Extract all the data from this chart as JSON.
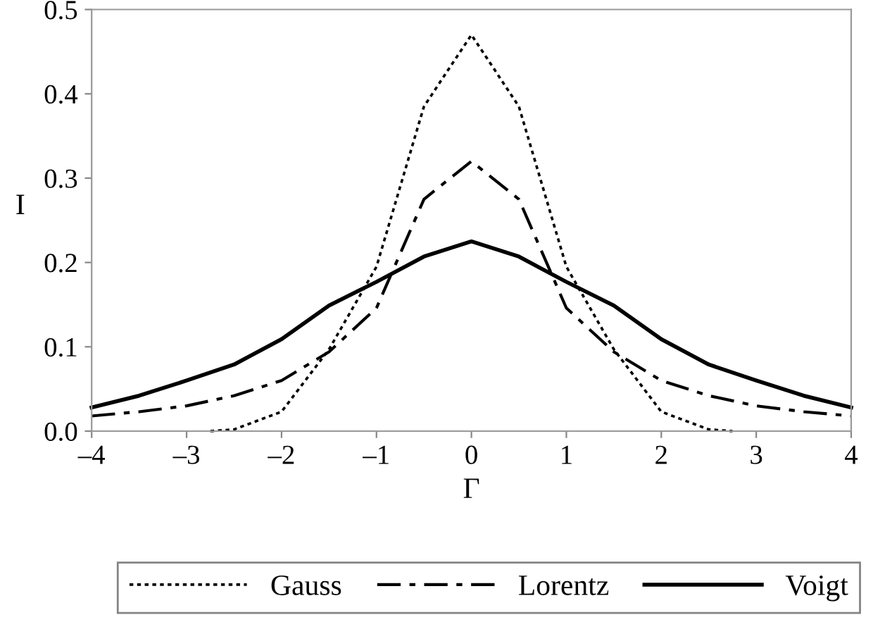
{
  "chart_data": {
    "type": "line",
    "xlabel": "Γ",
    "ylabel": "I",
    "xlim": [
      -4,
      4
    ],
    "xticks": [
      {
        "value": -4,
        "label": "–4"
      },
      {
        "value": -3,
        "label": "–3"
      },
      {
        "value": -2,
        "label": "–2"
      },
      {
        "value": -1,
        "label": "–1"
      },
      0,
      1,
      2,
      3,
      4
    ],
    "ylim": [
      0,
      0.5
    ],
    "yticks": [
      {
        "value": 0,
        "label": "0.0"
      },
      {
        "value": 0.1,
        "label": "0.1"
      },
      {
        "value": 0.2,
        "label": "0.2"
      },
      {
        "value": 0.3,
        "label": "0.3"
      },
      {
        "value": 0.4,
        "label": "0.4"
      },
      {
        "value": 0.5,
        "label": "0.5"
      }
    ],
    "grid": false,
    "legend": "bottom",
    "series": [
      {
        "name": "Gauss",
        "color": "#000000",
        "line_style": "dotted",
        "x": [
          -2.75,
          -2.5,
          -2,
          -1.5,
          -1,
          -0.5,
          0,
          0.5,
          1,
          1.5,
          2,
          2.5,
          2.75
        ],
        "values": [
          0,
          0.002,
          0.023,
          0.097,
          0.195,
          0.385,
          0.47,
          0.385,
          0.195,
          0.097,
          0.023,
          0.002,
          0
        ]
      },
      {
        "name": "Lorentz",
        "color": "#000000",
        "line_style": "dashdot",
        "x": [
          -4,
          -3.5,
          -3,
          -2.5,
          -2,
          -1.5,
          -1,
          -0.5,
          0,
          0.5,
          1,
          1.5,
          2,
          2.5,
          3,
          3.5,
          4
        ],
        "values": [
          0.018,
          0.023,
          0.03,
          0.042,
          0.06,
          0.094,
          0.146,
          0.275,
          0.32,
          0.275,
          0.146,
          0.094,
          0.06,
          0.042,
          0.03,
          0.023,
          0.018
        ]
      },
      {
        "name": "Voigt",
        "color": "#000000",
        "line_style": "solid",
        "x": [
          -4,
          -3.5,
          -3,
          -2.5,
          -2,
          -1.5,
          -1,
          -0.5,
          0,
          0.5,
          1,
          1.5,
          2,
          2.5,
          3,
          3.5,
          4
        ],
        "values": [
          0.028,
          0.042,
          0.06,
          0.079,
          0.109,
          0.149,
          0.177,
          0.207,
          0.225,
          0.207,
          0.177,
          0.149,
          0.109,
          0.079,
          0.06,
          0.042,
          0.028
        ]
      }
    ]
  }
}
